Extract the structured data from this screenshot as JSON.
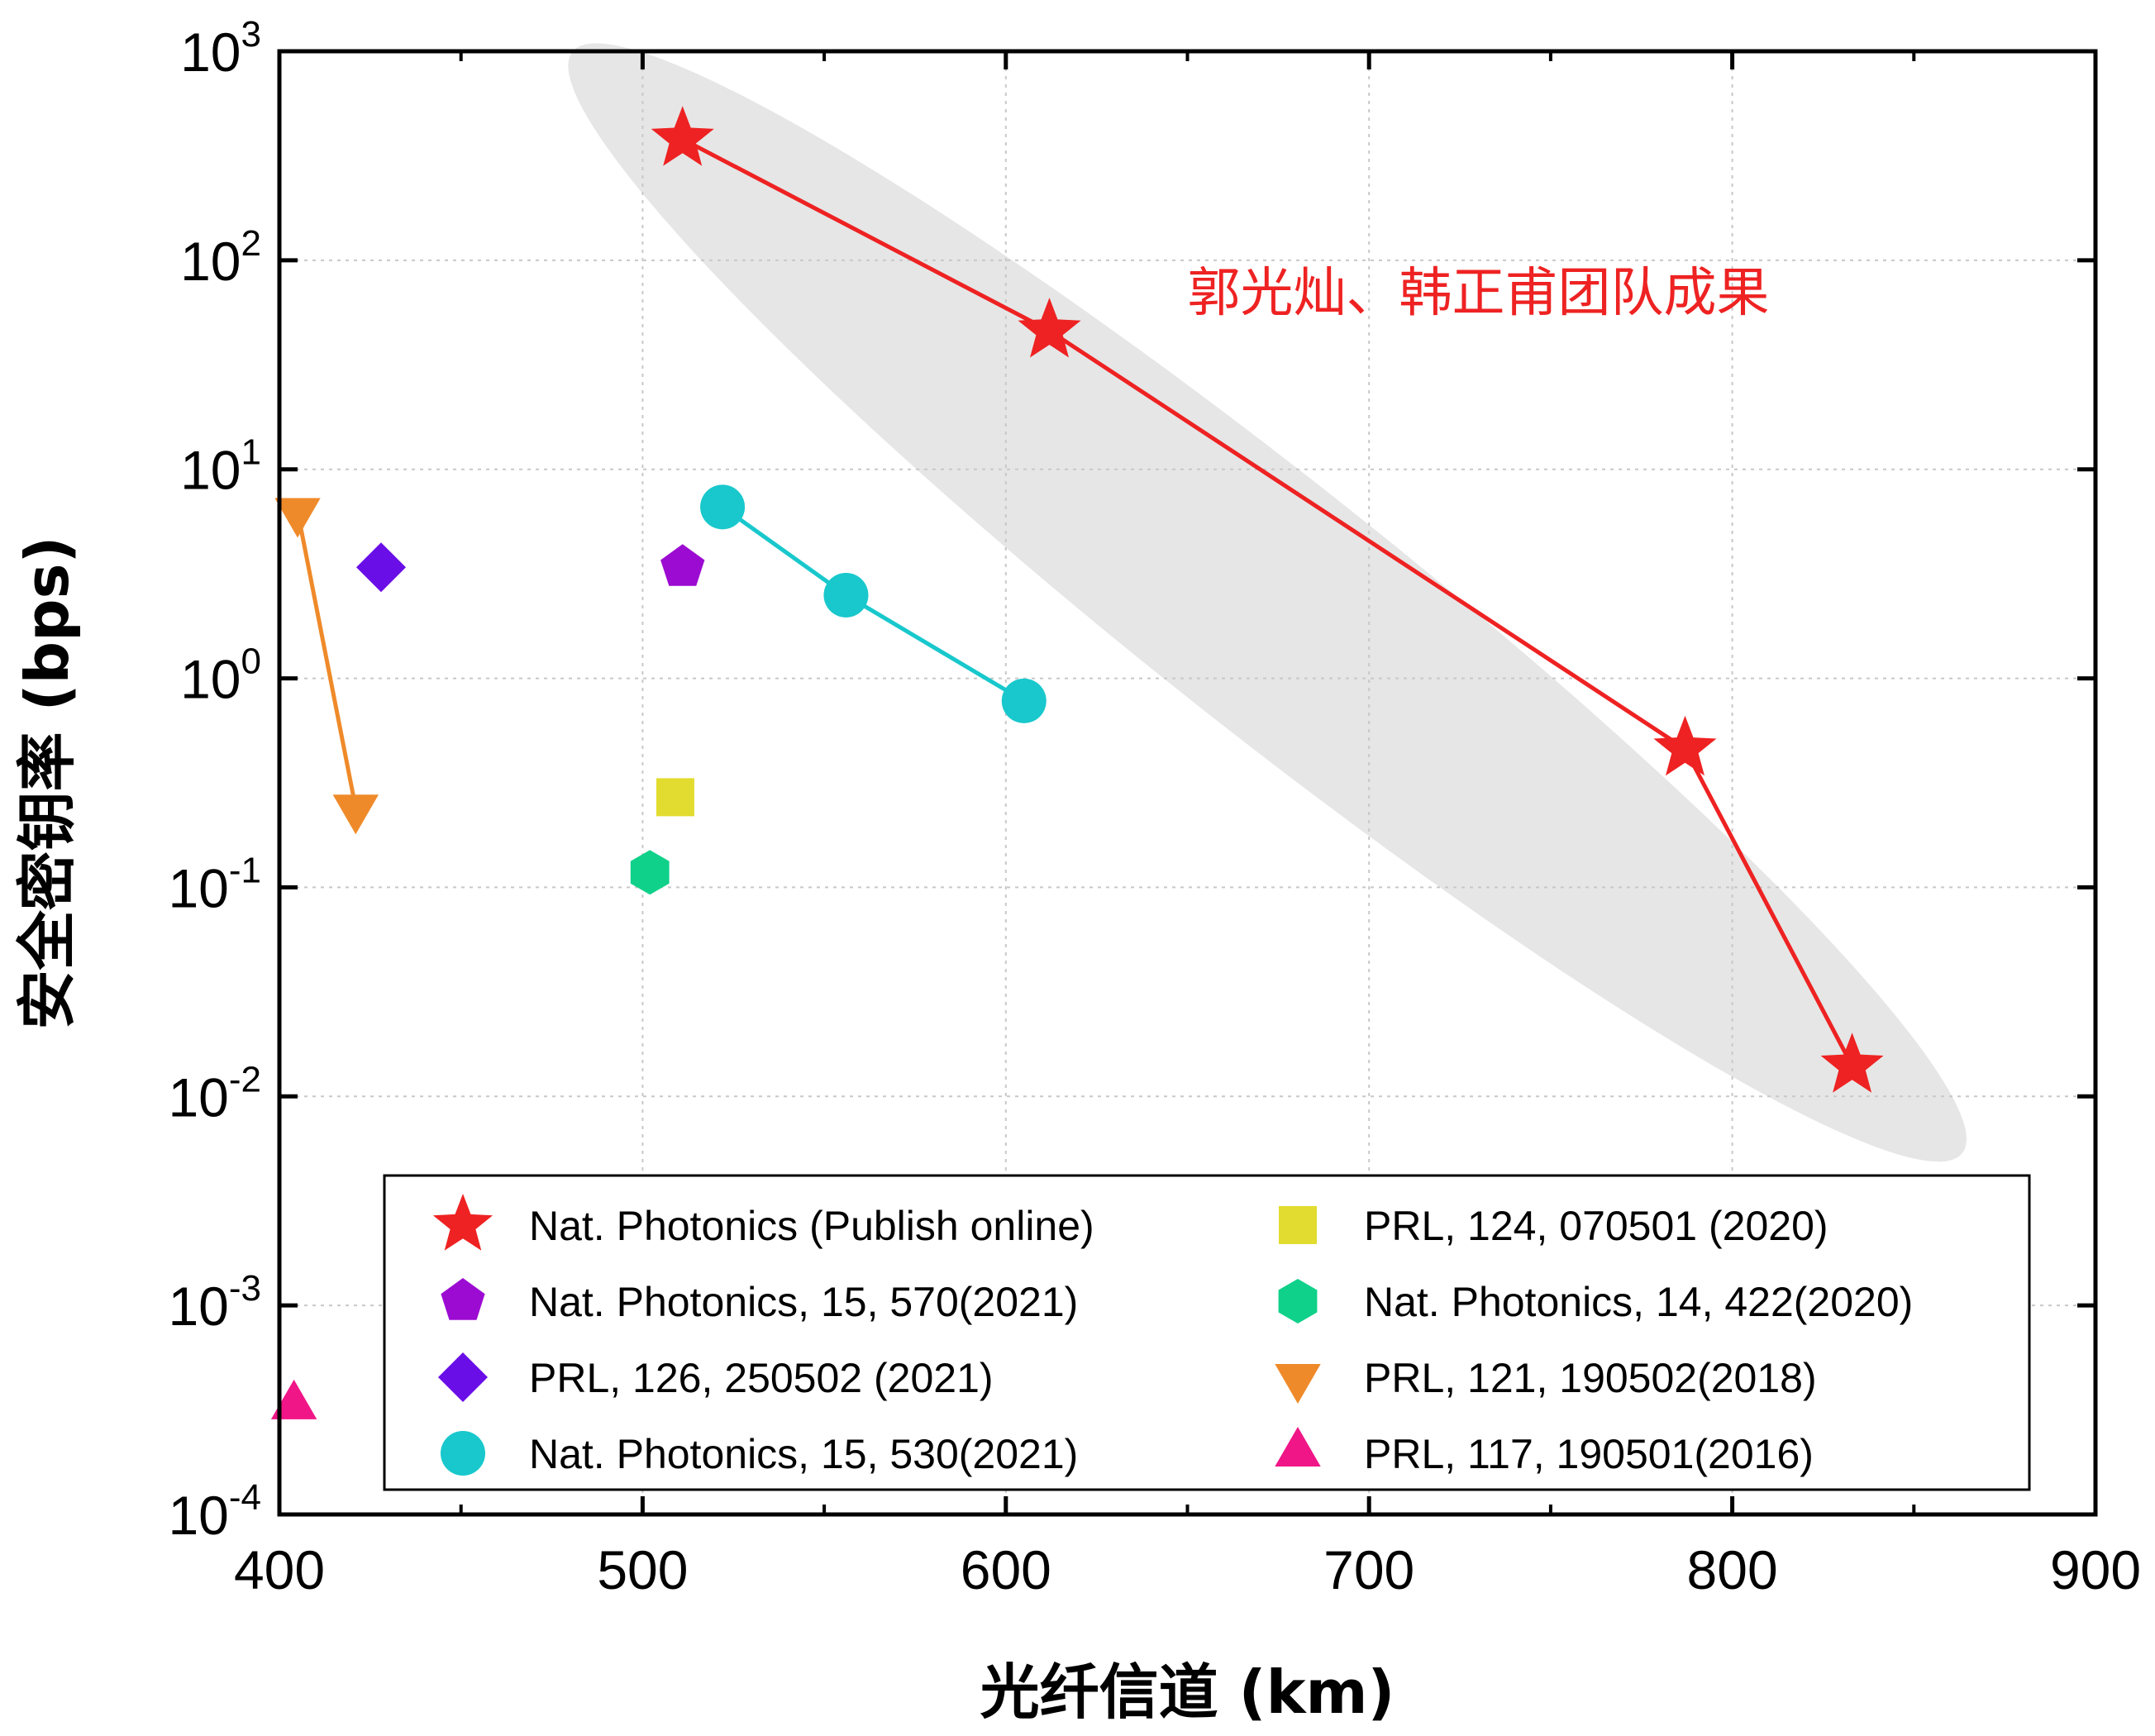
{
  "chart_data": {
    "type": "scatter",
    "title": "",
    "xlabel": "光纤信道 (km)",
    "ylabel": "安全密钥率 (bps)",
    "xlim": [
      400,
      900
    ],
    "ylim": [
      0.0001,
      1000
    ],
    "yscale": "log",
    "grid": true,
    "x_ticks": [
      400,
      500,
      600,
      700,
      800,
      900
    ],
    "y_ticks": [
      {
        "value": 0.0001,
        "base": "10",
        "exp": "-4"
      },
      {
        "value": 0.001,
        "base": "10",
        "exp": "-3"
      },
      {
        "value": 0.01,
        "base": "10",
        "exp": "-2"
      },
      {
        "value": 0.1,
        "base": "10",
        "exp": "-1"
      },
      {
        "value": 1,
        "base": "10",
        "exp": "0"
      },
      {
        "value": 10,
        "base": "10",
        "exp": "1"
      },
      {
        "value": 100,
        "base": "10",
        "exp": "2"
      },
      {
        "value": 1000,
        "base": "10",
        "exp": "3"
      }
    ],
    "annotation": {
      "text": "郭光灿、韩正甫团队成果",
      "color": "#ee2222",
      "x": 650,
      "y": 70
    },
    "highlight_region": {
      "from": [
        511,
        380
      ],
      "to": [
        833,
        0.014
      ],
      "color": "#e6e6e6"
    },
    "legend_position": "lower-right",
    "series": [
      {
        "name": "Nat. Photonics (Publish online)",
        "marker": "star",
        "color": "#ee2222",
        "line": true,
        "x": [
          511,
          612,
          787,
          833
        ],
        "y": [
          380,
          46,
          0.46,
          0.014
        ]
      },
      {
        "name": "Nat. Photonics, 15, 570(2021)",
        "marker": "pentagon",
        "color": "#9c0bd2",
        "line": false,
        "x": [
          511
        ],
        "y": [
          3.4
        ]
      },
      {
        "name": "PRL, 126, 250502 (2021)",
        "marker": "diamond",
        "color": "#6a0ee8",
        "line": false,
        "x": [
          428
        ],
        "y": [
          3.4
        ]
      },
      {
        "name": "Nat. Photonics, 15, 530(2021)",
        "marker": "circle",
        "color": "#18c8cc",
        "line": true,
        "x": [
          522,
          556,
          605
        ],
        "y": [
          6.6,
          2.5,
          0.78
        ]
      },
      {
        "name": "PRL, 124, 070501 (2020)",
        "marker": "square",
        "color": "#e2dc30",
        "line": false,
        "x": [
          509
        ],
        "y": [
          0.27
        ]
      },
      {
        "name": "Nat. Photonics, 14, 422(2020)",
        "marker": "hexagon",
        "color": "#10d18a",
        "line": false,
        "x": [
          502
        ],
        "y": [
          0.118
        ]
      },
      {
        "name": "PRL, 121, 190502(2018)",
        "marker": "triangle-down",
        "color": "#ef8a2a",
        "line": true,
        "x": [
          405,
          421
        ],
        "y": [
          6.3,
          0.24
        ]
      },
      {
        "name": "PRL, 117, 190501(2016)",
        "marker": "triangle-up",
        "color": "#f01687",
        "line": false,
        "x": [
          404
        ],
        "y": [
          0.00033
        ]
      }
    ]
  }
}
